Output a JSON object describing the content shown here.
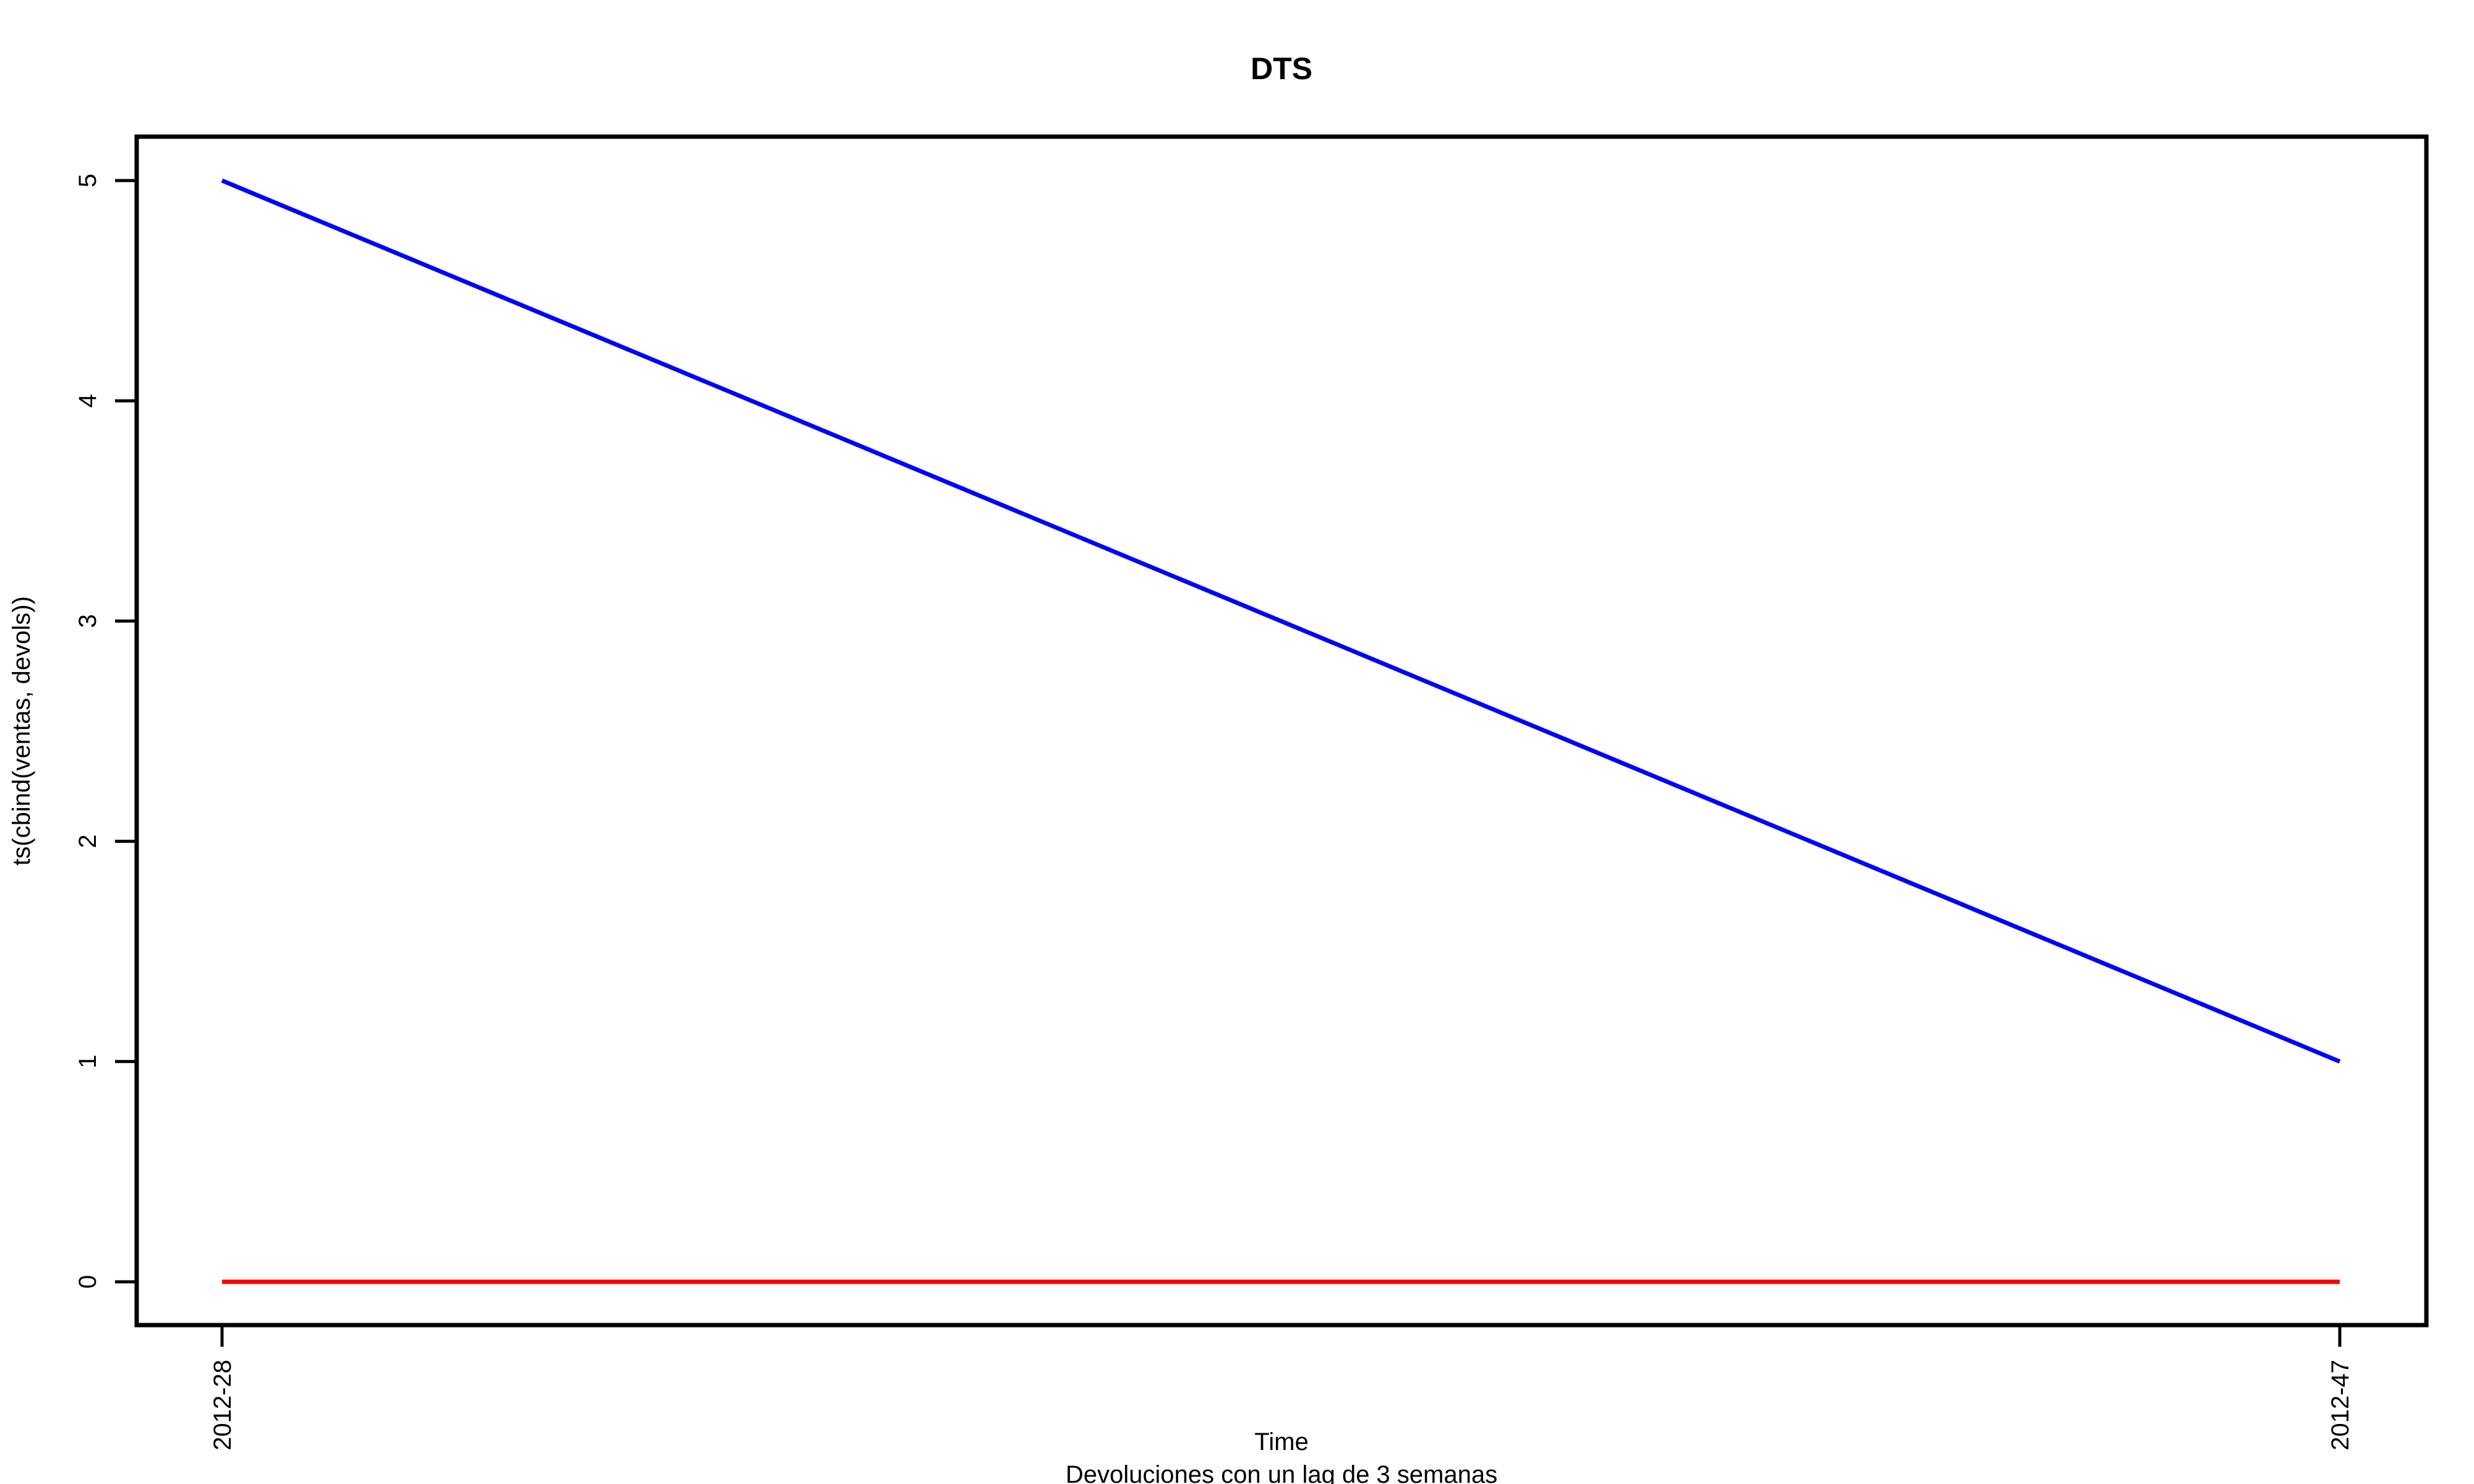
{
  "chart_data": {
    "type": "line",
    "title": "DTS",
    "subtitle": "Devoluciones con un lag de 3 semanas",
    "xlabel": "Time",
    "ylabel": "ts(cbind(ventas, devols))",
    "x_tick_labels": [
      "2012-28",
      "2012-47"
    ],
    "y_ticks": [
      0,
      1,
      2,
      3,
      4,
      5
    ],
    "ylim": [
      0,
      5
    ],
    "grid": false,
    "series": [
      {
        "x": [
          "2012-28",
          "2012-47"
        ],
        "values": [
          5,
          1
        ],
        "color": "#0000ff"
      },
      {
        "x": [
          "2012-28",
          "2012-47"
        ],
        "values": [
          0,
          0
        ],
        "color": "#ff0000"
      }
    ]
  }
}
